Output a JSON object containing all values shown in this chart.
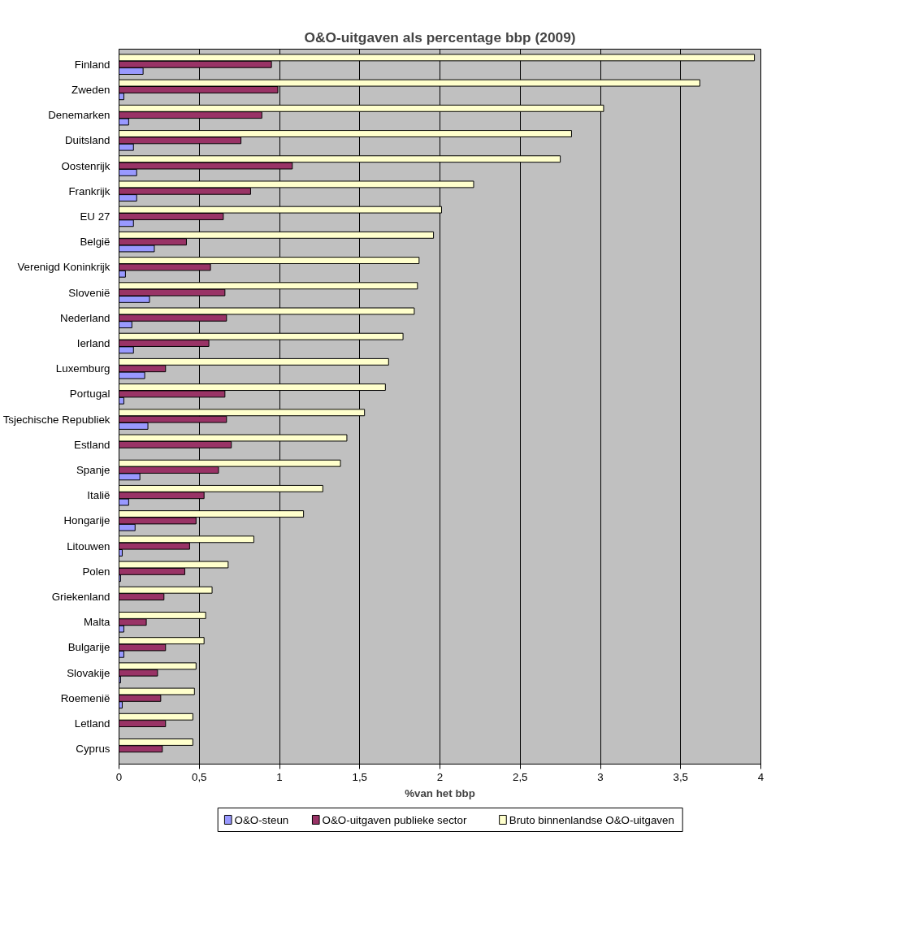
{
  "chart_data": {
    "type": "bar",
    "orientation": "horizontal",
    "title": "O&O-uitgaven als percentage bbp (2009)",
    "xlabel": "%van het bbp",
    "categories": [
      "Finland",
      "Zweden",
      "Denemarken",
      "Duitsland",
      "Oostenrijk",
      "Frankrijk",
      "EU 27",
      "België",
      "Verenigd Koninkrijk",
      "Slovenië",
      "Nederland",
      "Ierland",
      "Luxemburg",
      "Portugal",
      "Tsjechische Republiek",
      "Estland",
      "Spanje",
      "Italië",
      "Hongarije",
      "Litouwen",
      "Polen",
      "Griekenland",
      "Malta",
      "Bulgarije",
      "Slovakije",
      "Roemenië",
      "Letland",
      "Cyprus"
    ],
    "series": [
      {
        "name": "O&O-steun",
        "color": "#9999ff",
        "values": [
          0.15,
          0.03,
          0.06,
          0.09,
          0.11,
          0.11,
          0.09,
          0.22,
          0.04,
          0.19,
          0.08,
          0.09,
          0.16,
          0.03,
          0.18,
          null,
          0.13,
          0.06,
          0.1,
          0.02,
          0.01,
          null,
          0.03,
          0.03,
          0.01,
          0.02,
          null,
          null
        ]
      },
      {
        "name": "O&O-uitgaven publieke sector",
        "color": "#993366",
        "values": [
          0.95,
          0.99,
          0.89,
          0.76,
          1.08,
          0.82,
          0.65,
          0.42,
          0.57,
          0.66,
          0.67,
          0.56,
          0.29,
          0.66,
          0.67,
          0.7,
          0.62,
          0.53,
          0.48,
          0.44,
          0.41,
          0.28,
          0.17,
          0.29,
          0.24,
          0.26,
          0.29,
          0.27
        ]
      },
      {
        "name": "Bruto binnenlandse O&O-uitgaven",
        "color": "#ffffcc",
        "values": [
          3.96,
          3.62,
          3.02,
          2.82,
          2.75,
          2.21,
          2.01,
          1.96,
          1.87,
          1.86,
          1.84,
          1.77,
          1.68,
          1.66,
          1.53,
          1.42,
          1.38,
          1.27,
          1.15,
          0.84,
          0.68,
          0.58,
          0.54,
          0.53,
          0.48,
          0.47,
          0.46,
          0.46
        ]
      }
    ],
    "xlim": [
      0,
      4
    ],
    "xticks": [
      0,
      {
        "value": 0.5,
        "label": "0,5"
      },
      1,
      {
        "value": 1.5,
        "label": "1,5"
      },
      2,
      {
        "value": 2.5,
        "label": "2,5"
      },
      3,
      {
        "value": 3.5,
        "label": "3,5"
      },
      4
    ],
    "grid": "x",
    "legend": "bottom"
  }
}
